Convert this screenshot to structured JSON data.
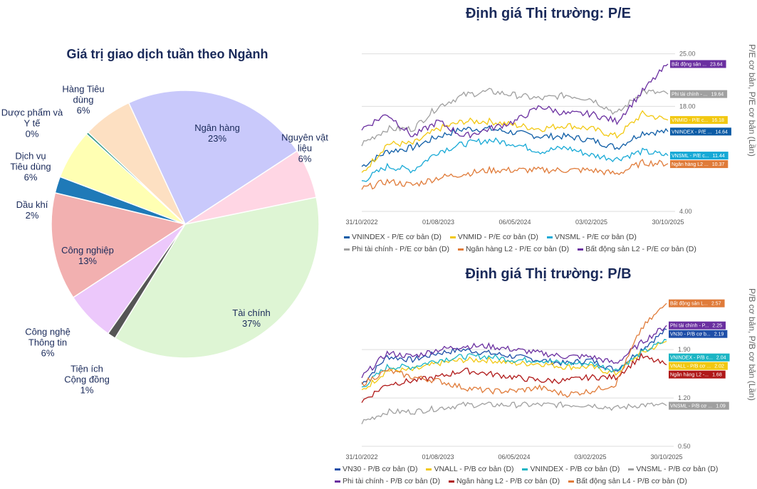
{
  "chart_data": [
    {
      "type": "pie",
      "title": "Giá trị giao dịch tuần theo Ngành",
      "slices": [
        {
          "label": "Ngân hàng",
          "value": 23,
          "color": "#c9c9fb"
        },
        {
          "label": "Nguyên vật liệu",
          "value": 6,
          "color": "#ffd6e4"
        },
        {
          "label": "Tài chính",
          "value": 37,
          "color": "#def5d4"
        },
        {
          "label": "Tiện ích Cộng đồng",
          "value": 1,
          "color": "#555555"
        },
        {
          "label": "Công nghệ Thông tin",
          "value": 6,
          "color": "#ecc8fb"
        },
        {
          "label": "Công nghiệp",
          "value": 13,
          "color": "#f2b0b0"
        },
        {
          "label": "Dầu khí",
          "value": 2,
          "color": "#1f7ab8"
        },
        {
          "label": "Dịch vụ Tiêu dùng",
          "value": 6,
          "color": "#ffffb3"
        },
        {
          "label": "Dược phẩm và Y tế",
          "value": 0,
          "color": "#3a9a8a"
        },
        {
          "label": "Hàng Tiêu dùng",
          "value": 6,
          "color": "#fde0c2"
        }
      ]
    },
    {
      "type": "line",
      "title": "Định giá Thị trường: P/E",
      "ylabel": "P/E cơ bản, P/E cơ bản (Lần)",
      "x_ticks": [
        "31/10/2022",
        "01/08/2023",
        "06/05/2024",
        "03/02/2025",
        "30/10/2025"
      ],
      "y_ticks": [
        "4.00",
        "18.00",
        "25.00"
      ],
      "ylim": [
        4,
        28
      ],
      "series": [
        {
          "name": "VNINDEX - P/E cơ bản (D)",
          "short": "VNINDEX - P/E ...",
          "last": "14.64",
          "color": "#0d5ca6",
          "values": [
            10,
            12,
            12.5,
            14,
            15,
            15,
            14.5,
            14,
            14,
            13.5,
            12.5,
            14.5,
            14.64
          ]
        },
        {
          "name": "VNMID - P/E cơ bản (D)",
          "short": "VNMID - P/E c...",
          "last": "16.18",
          "color": "#f2c811",
          "values": [
            9,
            13,
            13,
            15,
            16,
            16,
            15.5,
            15,
            15.5,
            15,
            14,
            17,
            16.18
          ]
        },
        {
          "name": "VNSML - P/E cơ bản (D)",
          "short": "VNSML - P/E c...",
          "last": "11.44",
          "color": "#17a9d6",
          "values": [
            8,
            10,
            9.5,
            12,
            13,
            13.5,
            13,
            12,
            12.5,
            11.5,
            11,
            12,
            11.44
          ]
        },
        {
          "name": "Phi tài chính - P/E cơ bản (D)",
          "short": "Phi tài chính - ...",
          "last": "19.64",
          "color": "#a0a0a0",
          "values": [
            13,
            15,
            15,
            18,
            19.5,
            20,
            19.5,
            19,
            19.5,
            19,
            17,
            20,
            19.64
          ]
        },
        {
          "name": "Ngân hàng L2 - P/E cơ bản (D)",
          "short": "Ngân hàng L2 ...",
          "last": "10.37",
          "color": "#e07b39",
          "values": [
            7,
            8,
            7.5,
            8.5,
            9,
            9.5,
            9.5,
            9.5,
            9.5,
            9.5,
            9,
            10.5,
            10.37
          ]
        },
        {
          "name": "Bất động sản L2 - P/E cơ bản (D)",
          "short": "Bất động sản ...",
          "last": "23.64",
          "color": "#6a2fa0",
          "values": [
            15,
            17,
            14,
            16,
            14,
            15,
            16,
            18,
            17,
            17,
            16,
            20,
            23.64
          ]
        }
      ]
    },
    {
      "type": "line",
      "title": "Định giá Thị trường: P/B",
      "ylabel": "P/B cơ bản, P/B cơ bản (Lần)",
      "x_ticks": [
        "31/10/2022",
        "01/08/2023",
        "06/05/2024",
        "03/02/2025",
        "30/10/2025"
      ],
      "y_ticks": [
        "0.50",
        "1.20",
        "1.90"
      ],
      "ylim": [
        0.5,
        2.85
      ],
      "series": [
        {
          "name": "VN30 - P/B cơ bản (D)",
          "short": "VN30 - P/B cơ b...",
          "last": "2.19",
          "color": "#1f4fa8",
          "values": [
            1.4,
            1.8,
            1.75,
            1.85,
            1.9,
            1.85,
            1.8,
            1.75,
            1.7,
            1.75,
            1.6,
            1.9,
            2.19
          ]
        },
        {
          "name": "VNALL - P/B cơ bản (D)",
          "short": "VNALL - P/B cơ ...",
          "last": "2.02",
          "color": "#f2c811",
          "values": [
            1.3,
            1.6,
            1.6,
            1.7,
            1.75,
            1.75,
            1.7,
            1.7,
            1.65,
            1.65,
            1.55,
            1.85,
            2.02
          ]
        },
        {
          "name": "VNINDEX - P/B cơ bản (D)",
          "short": "VNINDEX - P/B c...",
          "last": "2.04",
          "color": "#1bb5c4",
          "values": [
            1.35,
            1.65,
            1.65,
            1.75,
            1.8,
            1.8,
            1.75,
            1.75,
            1.7,
            1.7,
            1.6,
            1.85,
            2.04
          ]
        },
        {
          "name": "VNSML - P/B cơ bản (D)",
          "short": "VNSML - P/B cơ ...",
          "last": "1.09",
          "color": "#a0a0a0",
          "values": [
            0.85,
            1.0,
            1.0,
            1.05,
            1.1,
            1.1,
            1.1,
            1.1,
            1.1,
            1.1,
            1.05,
            1.1,
            1.09
          ]
        },
        {
          "name": "Phi tài chính - P/B cơ bản (D)",
          "short": "Phi tài chính - P...",
          "last": "2.25",
          "color": "#6a2fa0",
          "values": [
            1.5,
            1.85,
            1.8,
            1.9,
            1.95,
            1.95,
            1.9,
            1.85,
            1.8,
            1.8,
            1.7,
            2.0,
            2.25
          ]
        },
        {
          "name": "Ngân hàng L2 - P/B cơ bản (D)",
          "short": "Ngân hàng L2 -...",
          "last": "1.68",
          "color": "#b01818",
          "values": [
            1.15,
            1.4,
            1.45,
            1.5,
            1.6,
            1.55,
            1.5,
            1.45,
            1.45,
            1.5,
            1.5,
            1.8,
            1.68
          ]
        },
        {
          "name": "Bất động sản L4 - P/B cơ bản (D)",
          "short": "Bất động sản L...",
          "last": "2.57",
          "color": "#e07b39",
          "values": [
            1.4,
            1.6,
            1.5,
            1.45,
            1.35,
            1.3,
            1.3,
            1.35,
            1.25,
            1.3,
            1.4,
            2.2,
            2.57
          ]
        }
      ]
    }
  ]
}
